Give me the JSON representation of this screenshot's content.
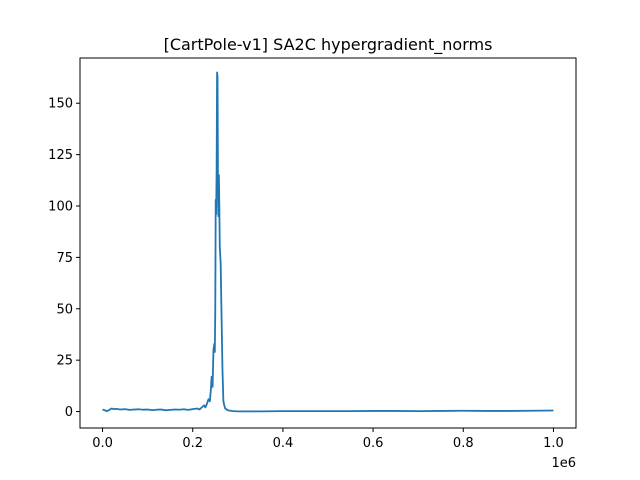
{
  "chart_data": {
    "type": "line",
    "title": "[CartPole-v1] SA2C hypergradient_norms",
    "xlabel": "",
    "ylabel": "",
    "x_offset_label": "1e6",
    "xlim": [
      -50000,
      1050000
    ],
    "ylim": [
      -8,
      172
    ],
    "x_ticks": [
      0,
      200000,
      400000,
      600000,
      800000,
      1000000
    ],
    "x_tick_labels": [
      "0.0",
      "0.2",
      "0.4",
      "0.6",
      "0.8",
      "1.0"
    ],
    "y_ticks": [
      0,
      25,
      50,
      75,
      100,
      125,
      150
    ],
    "y_tick_labels": [
      "0",
      "25",
      "50",
      "75",
      "100",
      "125",
      "150"
    ],
    "grid": false,
    "legend": "none",
    "series": [
      {
        "color": "#1f77b4",
        "x": [
          0,
          10000,
          15000,
          20000,
          25000,
          30000,
          40000,
          50000,
          60000,
          70000,
          80000,
          90000,
          100000,
          110000,
          120000,
          130000,
          140000,
          150000,
          160000,
          170000,
          180000,
          190000,
          200000,
          210000,
          215000,
          220000,
          225000,
          228000,
          232000,
          235000,
          238000,
          240000,
          242000,
          244000,
          246000,
          248000,
          249000,
          250000,
          251000,
          252000,
          253000,
          254000,
          255000,
          256000,
          257000,
          258000,
          259000,
          260000,
          262000,
          264000,
          266000,
          268000,
          270000,
          272000,
          275000,
          280000,
          290000,
          300000,
          350000,
          400000,
          450000,
          500000,
          550000,
          600000,
          650000,
          700000,
          750000,
          800000,
          850000,
          900000,
          950000,
          1000000
        ],
        "y": [
          1.0,
          0.2,
          0.8,
          1.5,
          1.2,
          1.3,
          1.0,
          1.2,
          0.8,
          1.0,
          1.1,
          0.9,
          1.0,
          0.7,
          0.9,
          1.0,
          0.6,
          0.8,
          1.0,
          0.9,
          1.1,
          0.8,
          1.2,
          1.5,
          1.0,
          2.0,
          3.0,
          2.0,
          4.0,
          6.0,
          5.0,
          10.0,
          17.0,
          12.0,
          30.0,
          33.0,
          29.0,
          50.0,
          103.0,
          96.0,
          118.0,
          165.0,
          163.0,
          110.0,
          95.0,
          115.0,
          100.0,
          80.0,
          72.0,
          45.0,
          20.0,
          5.0,
          3.0,
          1.5,
          1.0,
          0.5,
          0.2,
          0.1,
          0.1,
          0.2,
          0.2,
          0.2,
          0.2,
          0.3,
          0.3,
          0.2,
          0.3,
          0.4,
          0.3,
          0.3,
          0.4,
          0.5
        ]
      }
    ]
  }
}
